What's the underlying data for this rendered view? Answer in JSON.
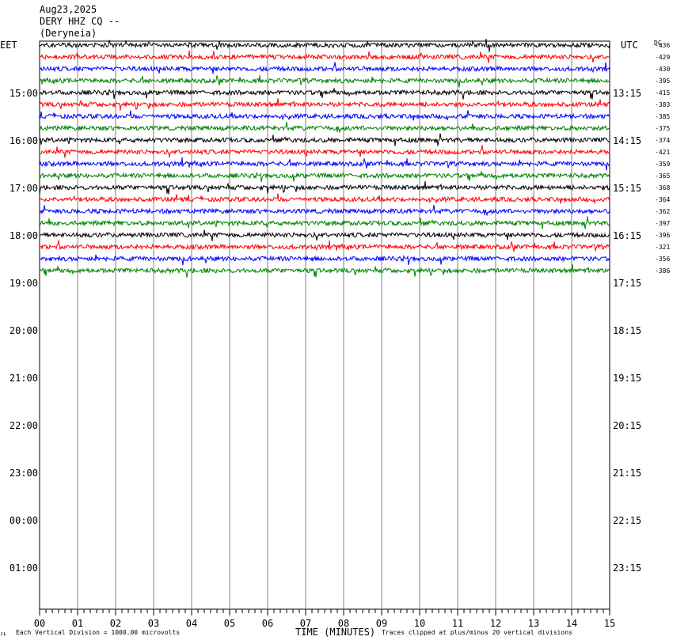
{
  "header": {
    "date": "Aug23,2025",
    "station": "DERY HHZ CQ --",
    "location": "(Deryneia)"
  },
  "left_axis_label": "EET",
  "right_axis_label": "UTC",
  "dc_label": "DC",
  "chart_data": {
    "type": "line",
    "title": "Aug23,2025 DERY HHZ CQ -- (Deryneia)",
    "xlabel": "TIME (MINUTES)",
    "x_ticks": [
      "00",
      "01",
      "02",
      "03",
      "04",
      "05",
      "06",
      "07",
      "08",
      "09",
      "10",
      "11",
      "12",
      "13",
      "14",
      "15"
    ],
    "xlim": [
      0,
      15
    ],
    "left_time_labels": [
      "15:00",
      "16:00",
      "17:00",
      "18:00",
      "19:00",
      "20:00",
      "21:00",
      "22:00",
      "23:00",
      "00:00",
      "01:00"
    ],
    "right_time_labels": [
      "13:15",
      "14:15",
      "15:15",
      "16:15",
      "17:15",
      "18:15",
      "19:15",
      "20:15",
      "21:15",
      "22:15",
      "23:15"
    ],
    "trace_colors": [
      "#000000",
      "#ff0000",
      "#0000ff",
      "#008000"
    ],
    "dc_offsets": [
      "-436",
      "-429",
      "-430",
      "-395",
      "-415",
      "-383",
      "-385",
      "-375",
      "-374",
      "-421",
      "-359",
      "-365",
      "-368",
      "-364",
      "-362",
      "-397",
      "-396",
      "-321",
      "-356",
      "-386"
    ],
    "trace_count": 20,
    "grid": true
  },
  "footer": {
    "scale_note": "Each Vertical Division = 1000.00 microvolts",
    "clip_note": "Traces clipped at plus/minus 20 vertical divisions",
    "corner_mark": "ᴊʟ"
  }
}
